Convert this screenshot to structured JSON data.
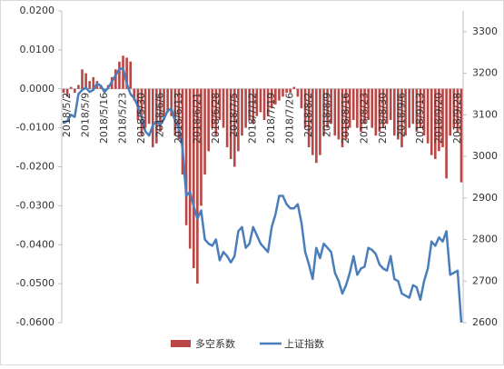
{
  "chart_data": {
    "type": "bar-line",
    "categories": [
      "2018/5/2",
      null,
      null,
      null,
      null,
      "2018/5/9",
      null,
      null,
      null,
      null,
      "2018/5/16",
      null,
      null,
      null,
      null,
      "2018/5/23",
      null,
      null,
      null,
      null,
      "2018/5/30",
      null,
      null,
      null,
      null,
      "2018/6/6",
      null,
      null,
      null,
      null,
      "2018/6/13",
      null,
      null,
      null,
      null,
      "2018/6/21",
      null,
      null,
      null,
      null,
      "2018/6/28",
      null,
      null,
      null,
      null,
      "2018/7/5",
      null,
      null,
      null,
      null,
      "2018/7/12",
      null,
      null,
      null,
      null,
      "2018/7/19",
      null,
      null,
      null,
      null,
      "2018/7/26",
      null,
      null,
      null,
      null,
      "2018/8/2",
      null,
      null,
      null,
      null,
      "2018/8/9",
      null,
      null,
      null,
      null,
      "2018/8/16",
      null,
      null,
      null,
      null,
      "2018/8/23",
      null,
      null,
      null,
      null,
      "2018/8/30",
      null,
      null,
      null,
      null,
      "2018/9/6",
      null,
      null,
      null,
      null,
      "2018/9/13",
      null,
      null,
      null,
      null,
      "2018/9/20",
      null,
      null,
      null,
      null,
      "2018/9/28",
      null,
      null
    ],
    "series": [
      {
        "name": "多空系数",
        "color": "#b84745",
        "kind": "bar",
        "axis": "y",
        "values": [
          -0.001,
          -0.002,
          0.0005,
          -0.001,
          0.001,
          0.005,
          0.004,
          0.002,
          0.003,
          0.002,
          0.001,
          -0.001,
          0.001,
          0.003,
          0.005,
          0.007,
          0.0085,
          0.008,
          0.007,
          -0.003,
          -0.008,
          -0.012,
          -0.01,
          -0.009,
          -0.015,
          -0.014,
          -0.011,
          -0.008,
          -0.006,
          -0.007,
          -0.012,
          -0.013,
          -0.022,
          -0.035,
          -0.041,
          -0.046,
          -0.05,
          -0.03,
          -0.022,
          -0.016,
          -0.01,
          -0.012,
          -0.008,
          -0.01,
          -0.015,
          -0.018,
          -0.02,
          -0.016,
          -0.012,
          -0.01,
          -0.008,
          -0.009,
          -0.007,
          -0.006,
          -0.008,
          -0.007,
          -0.005,
          -0.004,
          -0.003,
          -0.002,
          -0.001,
          -0.001,
          0.0005,
          -0.002,
          -0.005,
          -0.01,
          -0.015,
          -0.017,
          -0.019,
          -0.017,
          -0.012,
          -0.01,
          -0.009,
          -0.012,
          -0.013,
          -0.015,
          -0.013,
          -0.01,
          -0.008,
          -0.01,
          -0.011,
          -0.009,
          -0.008,
          -0.01,
          -0.012,
          -0.011,
          -0.01,
          -0.009,
          -0.008,
          -0.012,
          -0.013,
          -0.015,
          -0.012,
          -0.01,
          -0.009,
          -0.011,
          -0.01,
          -0.012,
          -0.014,
          -0.017,
          -0.018,
          -0.016,
          -0.015,
          -0.023,
          -0.012,
          -0.01,
          -0.011,
          -0.024
        ]
      },
      {
        "name": "上证指数",
        "color": "#4a7ebb",
        "kind": "line",
        "axis": "y2",
        "values": [
          3080,
          3085,
          3100,
          3095,
          3150,
          3160,
          3165,
          3155,
          3160,
          3175,
          3170,
          3155,
          3165,
          3180,
          3195,
          3210,
          3212,
          3175,
          3150,
          3140,
          3120,
          3095,
          3060,
          3050,
          3075,
          3085,
          3075,
          3090,
          3110,
          3115,
          3085,
          3070,
          3020,
          2905,
          2915,
          2880,
          2850,
          2870,
          2800,
          2790,
          2785,
          2800,
          2750,
          2770,
          2760,
          2745,
          2760,
          2820,
          2830,
          2780,
          2790,
          2830,
          2810,
          2790,
          2780,
          2770,
          2830,
          2860,
          2905,
          2905,
          2885,
          2875,
          2875,
          2885,
          2840,
          2770,
          2740,
          2705,
          2780,
          2755,
          2790,
          2780,
          2770,
          2720,
          2700,
          2670,
          2690,
          2720,
          2760,
          2715,
          2730,
          2735,
          2780,
          2775,
          2765,
          2740,
          2730,
          2725,
          2760,
          2705,
          2700,
          2670,
          2665,
          2660,
          2690,
          2685,
          2655,
          2700,
          2730,
          2795,
          2785,
          2805,
          2795,
          2820,
          2715,
          2720,
          2725,
          2600
        ]
      }
    ],
    "ylim": [
      -0.06,
      0.02
    ],
    "yticks": [
      {
        "value": -0.06,
        "label": "-0.0600"
      },
      {
        "value": -0.05,
        "label": "-0.0500"
      },
      {
        "value": -0.04,
        "label": "-0.0400"
      },
      {
        "value": -0.03,
        "label": "-0.0300"
      },
      {
        "value": -0.02,
        "label": "-0.0200"
      },
      {
        "value": -0.01,
        "label": "-0.0100"
      },
      {
        "value": 0,
        "label": "0.0000"
      },
      {
        "value": 0.01,
        "label": "0.0100"
      },
      {
        "value": 0.02,
        "label": "0.0200"
      }
    ],
    "y2lim": [
      2600,
      3350
    ],
    "y2ticks": [
      2600,
      2700,
      2800,
      2900,
      3000,
      3100,
      3200,
      3300
    ],
    "legend": "bottom"
  }
}
